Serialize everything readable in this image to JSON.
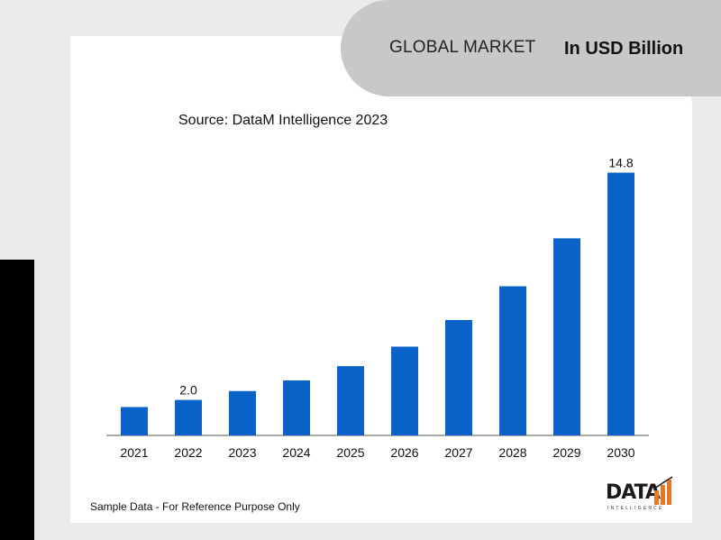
{
  "header": {
    "title": "GLOBAL MARKET",
    "unit": "In USD Billion"
  },
  "source": "Source: DataM Intelligence 2023",
  "footnote": "Sample Data - For Reference Purpose Only",
  "logo": {
    "text": "DATA",
    "sub": "INTELLIGENCE"
  },
  "colors": {
    "bar": "#0a63c9",
    "axis": "#555555",
    "accent": "#e87722"
  },
  "chart_data": {
    "type": "bar",
    "categories": [
      "2021",
      "2022",
      "2023",
      "2024",
      "2025",
      "2026",
      "2027",
      "2028",
      "2029",
      "2030"
    ],
    "values": [
      1.6,
      2.0,
      2.5,
      3.1,
      3.9,
      5.0,
      6.5,
      8.4,
      11.1,
      14.8
    ],
    "data_labels": [
      "",
      "2.0",
      "",
      "",
      "",
      "",
      "",
      "",
      "",
      "14.8"
    ],
    "ylim": [
      0,
      16
    ],
    "grid": false,
    "legend": "none"
  }
}
